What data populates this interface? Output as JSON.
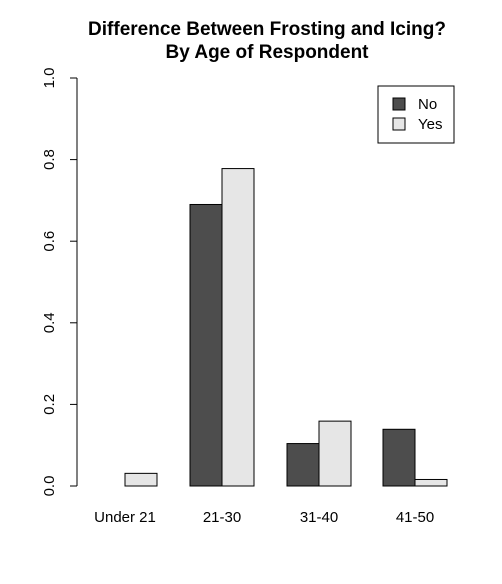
{
  "chart_data": {
    "type": "bar",
    "title": [
      "Difference Between Frosting and Icing?",
      "By Age of Respondent"
    ],
    "xlabel": "",
    "ylabel": "",
    "categories": [
      "Under 21",
      "21-30",
      "31-40",
      "41-50"
    ],
    "series": [
      {
        "name": "No",
        "color": "#4d4d4d",
        "values": [
          0.0,
          0.69,
          0.104,
          0.139
        ]
      },
      {
        "name": "Yes",
        "color": "#e6e6e6",
        "values": [
          0.031,
          0.778,
          0.159,
          0.016
        ]
      }
    ],
    "ylim": [
      0,
      1
    ],
    "yticks": [
      "0.0",
      "0.2",
      "0.4",
      "0.6",
      "0.8",
      "1.0"
    ],
    "grid": false,
    "legend": {
      "position": "top-right"
    }
  }
}
